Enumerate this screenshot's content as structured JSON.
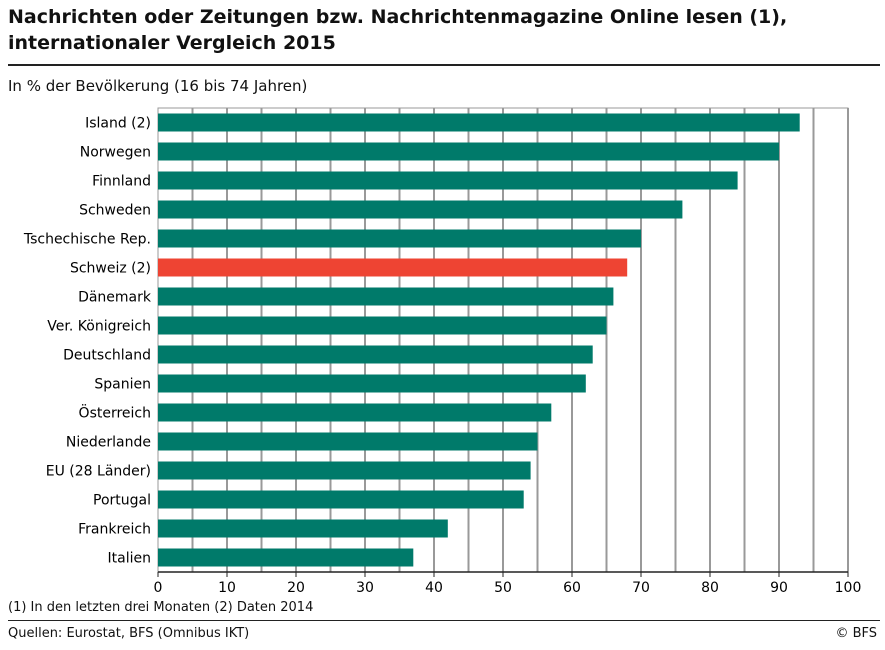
{
  "title": "Nachrichten oder Zeitungen bzw. Nachrichtenmagazine Online lesen (1), internationaler Vergleich 2015",
  "subtitle": "In % der Bevölkerung (16 bis 74 Jahren)",
  "footnote": "(1) In den letzten drei Monaten    (2) Daten 2014",
  "source": "Quellen: Eurostat, BFS (Omnibus IKT)",
  "copyright": "© BFS",
  "colors": {
    "default": "#007a6a",
    "highlight": "#ee4433",
    "grid": "#999999"
  },
  "chart_data": {
    "type": "bar",
    "orientation": "horizontal",
    "categories": [
      "Island (2)",
      "Norwegen",
      "Finnland",
      "Schweden",
      "Tschechische Rep.",
      "Schweiz (2)",
      "Dänemark",
      "Ver. Königreich",
      "Deutschland",
      "Spanien",
      "Österreich",
      "Niederlande",
      "EU (28 Länder)",
      "Portugal",
      "Frankreich",
      "Italien"
    ],
    "values": [
      93,
      90,
      84,
      76,
      70,
      68,
      66,
      65,
      63,
      62,
      57,
      55,
      54,
      53,
      42,
      37
    ],
    "highlight": "Schweiz (2)",
    "xlim": [
      0,
      100
    ],
    "xticks": [
      0,
      10,
      20,
      30,
      40,
      50,
      60,
      70,
      80,
      90,
      100
    ],
    "grid": true
  }
}
